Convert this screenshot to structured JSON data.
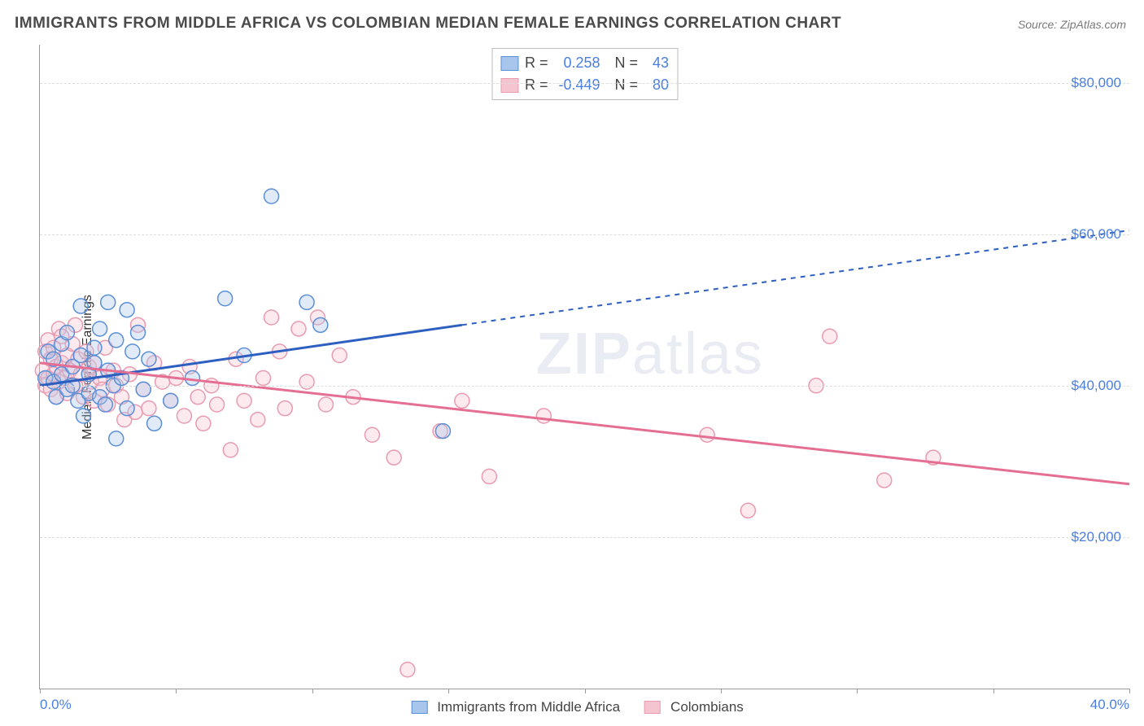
{
  "title": "IMMIGRANTS FROM MIDDLE AFRICA VS COLOMBIAN MEDIAN FEMALE EARNINGS CORRELATION CHART",
  "source": "Source: ZipAtlas.com",
  "watermark": "ZIPatlas",
  "y_axis_title": "Median Female Earnings",
  "chart": {
    "type": "scatter",
    "background_color": "#ffffff",
    "grid_color": "#dddddd",
    "axis_color": "#999999",
    "text_color": "#444444",
    "value_color": "#4a7fe0",
    "title_fontsize": 19,
    "label_fontsize": 16,
    "tick_fontsize": 17,
    "xlim": [
      0,
      40
    ],
    "ylim": [
      0,
      85000
    ],
    "x_unit": "%",
    "xtick_min_label": "0.0%",
    "xtick_max_label": "40.0%",
    "xticks": [
      0,
      5,
      10,
      15,
      20,
      25,
      30,
      35,
      40
    ],
    "ytick_step": 20000,
    "yticks": [
      20000,
      40000,
      60000,
      80000
    ],
    "ytick_labels": [
      "$20,000",
      "$40,000",
      "$60,000",
      "$80,000"
    ],
    "marker_radius": 9,
    "marker_stroke_width": 1.5,
    "marker_fill_opacity": 0.35,
    "line_width": 3,
    "series": [
      {
        "key": "blue",
        "label": "Immigrants from Middle Africa",
        "color_stroke": "#5a8fd8",
        "color_fill": "#a8c5ec",
        "line_color": "#2c5fc0",
        "R": "0.258",
        "N": "43",
        "regression": {
          "x1": 0,
          "y1": 40000,
          "x2": 15.5,
          "y2": 48000,
          "dash_x2": 40,
          "dash_y2": 60500
        },
        "points": [
          [
            0.2,
            41000
          ],
          [
            0.3,
            44500
          ],
          [
            0.5,
            40500
          ],
          [
            0.5,
            43500
          ],
          [
            0.6,
            38500
          ],
          [
            0.8,
            41500
          ],
          [
            0.8,
            45500
          ],
          [
            1.0,
            39500
          ],
          [
            1.0,
            47000
          ],
          [
            1.2,
            40000
          ],
          [
            1.2,
            42500
          ],
          [
            1.4,
            38000
          ],
          [
            1.5,
            44000
          ],
          [
            1.5,
            50500
          ],
          [
            1.6,
            36000
          ],
          [
            1.8,
            39000
          ],
          [
            1.8,
            41500
          ],
          [
            2.0,
            43000
          ],
          [
            2.0,
            45000
          ],
          [
            2.2,
            38500
          ],
          [
            2.2,
            47500
          ],
          [
            2.4,
            37500
          ],
          [
            2.5,
            42000
          ],
          [
            2.5,
            51000
          ],
          [
            2.7,
            40000
          ],
          [
            2.8,
            33000
          ],
          [
            2.8,
            46000
          ],
          [
            3.0,
            41000
          ],
          [
            3.2,
            37000
          ],
          [
            3.2,
            50000
          ],
          [
            3.4,
            44500
          ],
          [
            3.6,
            47000
          ],
          [
            3.8,
            39500
          ],
          [
            4.0,
            43500
          ],
          [
            4.2,
            35000
          ],
          [
            4.8,
            38000
          ],
          [
            5.6,
            41000
          ],
          [
            6.8,
            51500
          ],
          [
            7.5,
            44000
          ],
          [
            8.5,
            65000
          ],
          [
            9.8,
            51000
          ],
          [
            10.3,
            48000
          ],
          [
            14.8,
            34000
          ]
        ]
      },
      {
        "key": "pink",
        "label": "Colombians",
        "color_stroke": "#e99bb0",
        "color_fill": "#f5c4d1",
        "line_color": "#e56f93",
        "R": "-0.449",
        "N": "80",
        "regression": {
          "x1": 0,
          "y1": 43000,
          "x2": 40,
          "y2": 27000
        },
        "points": [
          [
            0.1,
            42000
          ],
          [
            0.2,
            40000
          ],
          [
            0.2,
            44500
          ],
          [
            0.3,
            41000
          ],
          [
            0.3,
            46000
          ],
          [
            0.4,
            39500
          ],
          [
            0.4,
            43500
          ],
          [
            0.5,
            41500
          ],
          [
            0.5,
            45000
          ],
          [
            0.6,
            38500
          ],
          [
            0.6,
            42500
          ],
          [
            0.7,
            40500
          ],
          [
            0.7,
            47500
          ],
          [
            0.8,
            43000
          ],
          [
            0.8,
            46500
          ],
          [
            0.9,
            41000
          ],
          [
            1.0,
            44000
          ],
          [
            1.0,
            39000
          ],
          [
            1.1,
            42000
          ],
          [
            1.2,
            45500
          ],
          [
            1.3,
            40000
          ],
          [
            1.3,
            48000
          ],
          [
            1.4,
            43500
          ],
          [
            1.5,
            41500
          ],
          [
            1.6,
            38500
          ],
          [
            1.7,
            44500
          ],
          [
            1.8,
            42500
          ],
          [
            1.9,
            40500
          ],
          [
            2.0,
            38000
          ],
          [
            2.0,
            43000
          ],
          [
            2.2,
            41000
          ],
          [
            2.3,
            39500
          ],
          [
            2.4,
            45000
          ],
          [
            2.5,
            37500
          ],
          [
            2.7,
            42000
          ],
          [
            2.8,
            40000
          ],
          [
            3.0,
            38500
          ],
          [
            3.1,
            35500
          ],
          [
            3.3,
            41500
          ],
          [
            3.5,
            36500
          ],
          [
            3.6,
            48000
          ],
          [
            3.8,
            39500
          ],
          [
            4.0,
            37000
          ],
          [
            4.2,
            43000
          ],
          [
            4.5,
            40500
          ],
          [
            4.8,
            38000
          ],
          [
            5.0,
            41000
          ],
          [
            5.3,
            36000
          ],
          [
            5.5,
            42500
          ],
          [
            5.8,
            38500
          ],
          [
            6.0,
            35000
          ],
          [
            6.3,
            40000
          ],
          [
            6.5,
            37500
          ],
          [
            7.0,
            31500
          ],
          [
            7.2,
            43500
          ],
          [
            7.5,
            38000
          ],
          [
            8.0,
            35500
          ],
          [
            8.2,
            41000
          ],
          [
            8.5,
            49000
          ],
          [
            8.8,
            44500
          ],
          [
            9.0,
            37000
          ],
          [
            9.5,
            47500
          ],
          [
            9.8,
            40500
          ],
          [
            10.2,
            49000
          ],
          [
            10.5,
            37500
          ],
          [
            11.0,
            44000
          ],
          [
            11.5,
            38500
          ],
          [
            12.2,
            33500
          ],
          [
            13.0,
            30500
          ],
          [
            13.5,
            2500
          ],
          [
            14.7,
            34000
          ],
          [
            15.5,
            38000
          ],
          [
            16.5,
            28000
          ],
          [
            18.5,
            36000
          ],
          [
            24.5,
            33500
          ],
          [
            26.0,
            23500
          ],
          [
            28.5,
            40000
          ],
          [
            29.0,
            46500
          ],
          [
            31.0,
            27500
          ],
          [
            32.8,
            30500
          ]
        ]
      }
    ]
  }
}
